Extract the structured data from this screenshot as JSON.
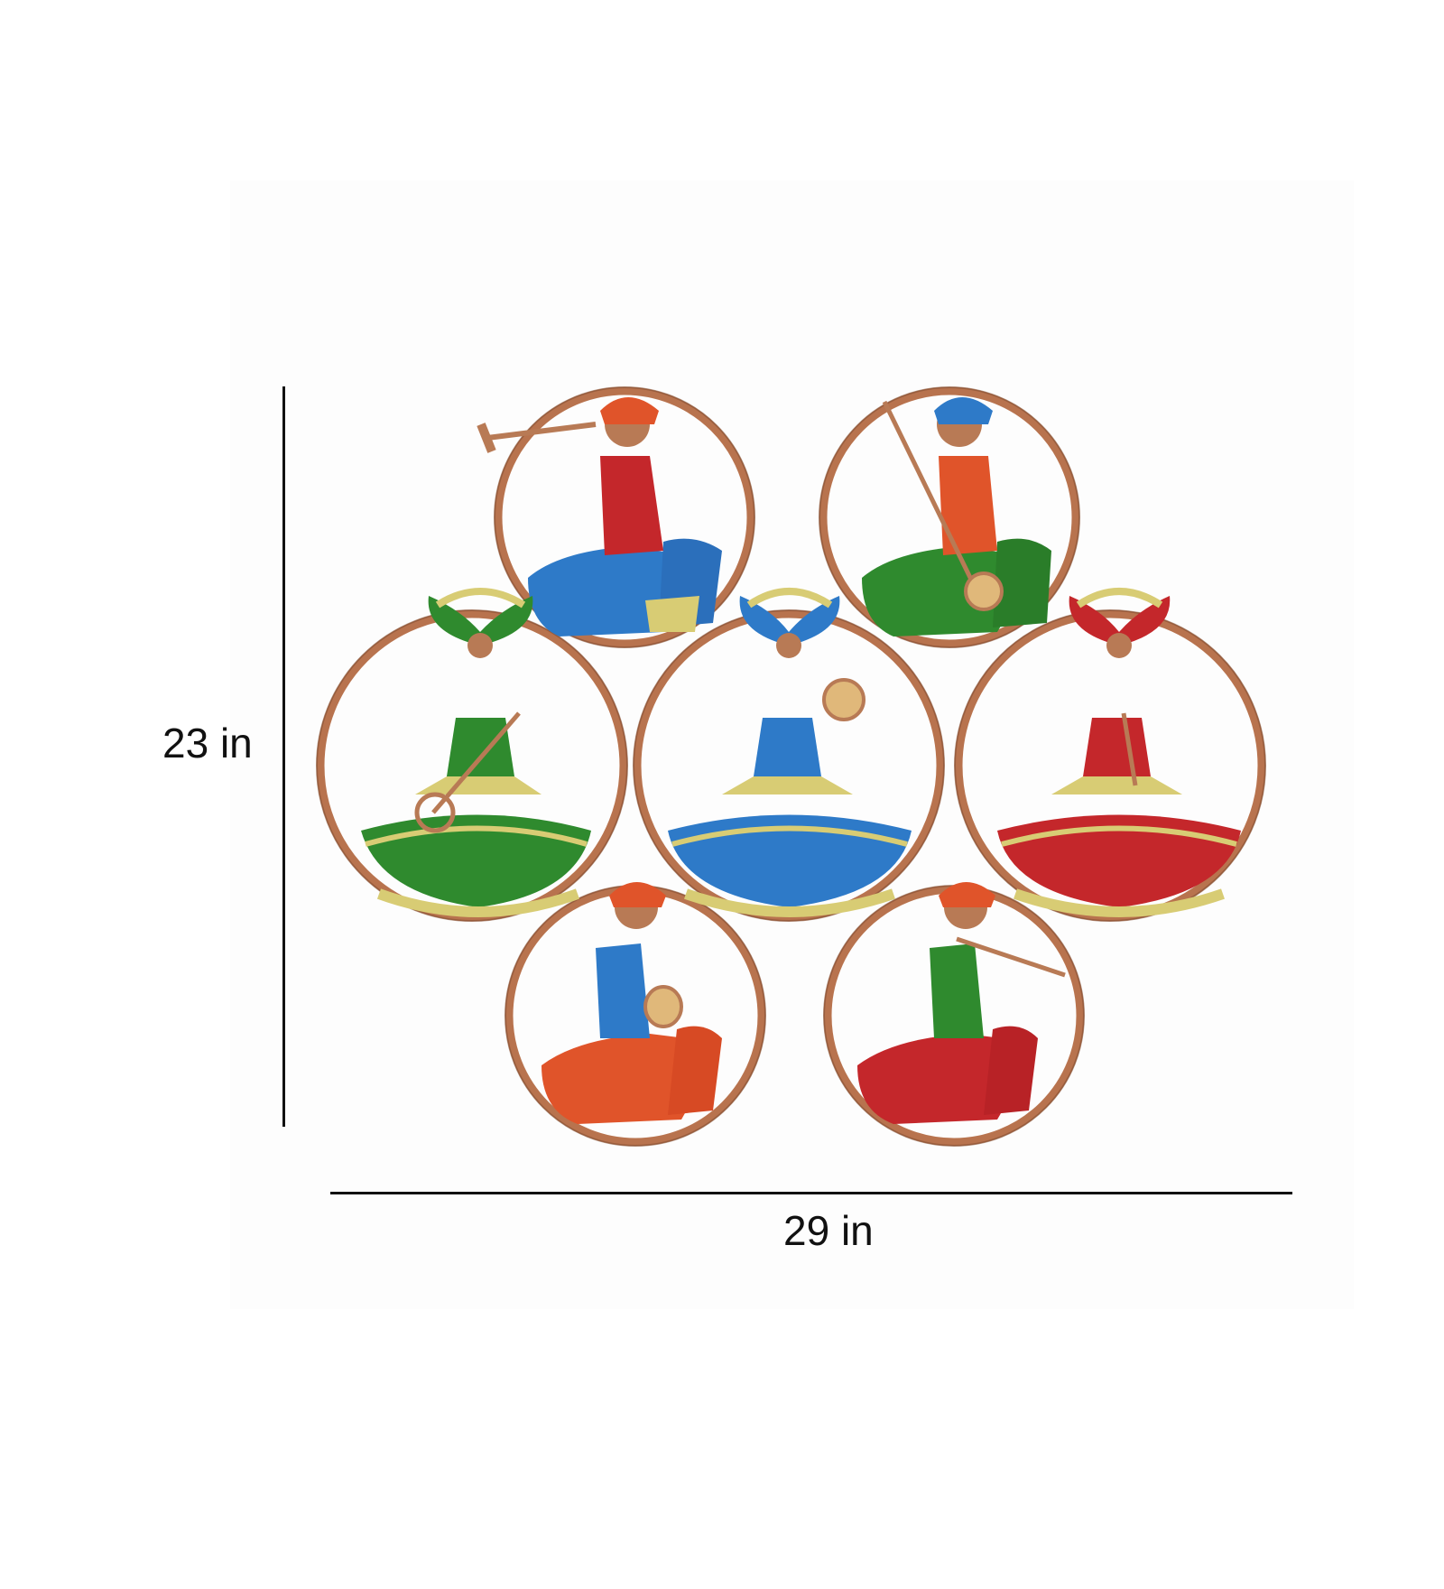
{
  "dimensions": {
    "height_label": "23 in",
    "width_label": "29 in"
  },
  "colors": {
    "ring": "#b8734e",
    "ring_dark": "#8a4f33",
    "copper_skin": "#b87a55",
    "red": "#c4272b",
    "blue": "#2e7ac8",
    "green": "#2f8a2e",
    "orange": "#e0542a",
    "gold": "#d8cc74"
  },
  "figures": [
    {
      "role": "musician",
      "instrument": "trumpet",
      "shirt": "red",
      "skirt": "blue"
    },
    {
      "role": "musician",
      "instrument": "stringed-instrument",
      "shirt": "orange",
      "skirt": "green"
    },
    {
      "role": "dancer",
      "instrument": "tambura",
      "blouse": "green",
      "skirt": "green"
    },
    {
      "role": "dancer",
      "instrument": "hand-drum",
      "blouse": "blue",
      "skirt": "blue"
    },
    {
      "role": "dancer",
      "instrument": "shehnai",
      "blouse": "red",
      "skirt": "red"
    },
    {
      "role": "musician",
      "instrument": "dholak",
      "shirt": "blue",
      "skirt": "orange"
    },
    {
      "role": "musician",
      "instrument": "flute",
      "shirt": "green",
      "skirt": "red"
    }
  ]
}
